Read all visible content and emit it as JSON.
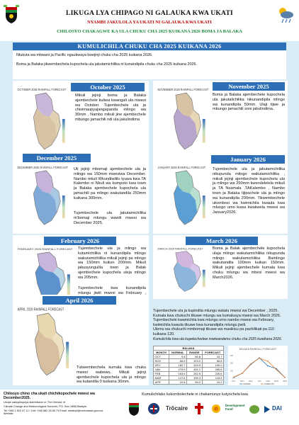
{
  "header": {
    "title": "LIKUGA LYA CHIPAGO NI GALAUKA KWA UKATI",
    "subtitle_red": "NYAMBI JAKULOLA YA UKATI NI GALAUKA KWA UKATI",
    "subtitle_green": "CHILOSYO CHAKAGWE KA ULA CHUKU CHA 2025 KUIKANA 2026 BOMA JA BALAKA"
  },
  "banner": "KUMULICHILA CHUKU CHA 2025 KUIKANA 2026",
  "intro": {
    "p1": "Ntukuta wa mbwani  ja Pacific ngaukwaya kwejinji chuku cha 2025 kuikana 2026.",
    "p2": "Boma ja Balaka jikwembechela kupochela ula jakutamichilika ni kunandipila chuku cha 2025 kuikana 2026."
  },
  "panels": {
    "oct": {
      "title": "October 2025",
      "map_title": "OCTOBER 2025 RAINFALL FORECAST",
      "text": "Mikuli jejinji boma ja Balaka ajembechele kuliwa kwangali ula mwesi wa October. Tujembechele ula ja chisimaupyajangapanda mlingo wa 30mm , Nambo mikuli jine ajembechele mbungo jamachili ndi ula jakulindima"
    },
    "nov": {
      "title": "November 2025",
      "map_title": "NOVEMBER 2025 RAINFALL FORECAST",
      "text": "Boma ja Balaka ajembechele kupochela ula jakutalichilika nikunandipila mlingo wa kunandipila 50mm. Ulaji tijwe ja mbungo jamachili soni jakulindima.."
    },
    "dec": {
      "title": "December 2025",
      "map_title": "DECEMBER 2025 RAINFALL FORECAST",
      "text1": "Uli jejinji mbomaji ajembechele ula ja mlingo wa 150mm mwesiwa December. Nambo mkuli Wkundiwililo tyuwa kwa TA Kalembo ni Nkuli wa kumpoto kwa town ja Balaka ajembechele kupochela ula jamachili pa mlingo wakutandila 250mm kuikana 300mm.",
      "text2": "Tujembechele ula jakutamichilika m'bomaji mlungu wawili mwesi wa December 2025."
    },
    "jan": {
      "title": "January 2026",
      "map_title": "JANUARY 2026 RAINFALL FORECAST",
      "text": "Tujembechele ula ja jakutamichilika nikupunda mlingo wakutamichilika , mikuli jejinji ajembechele kupochela ula ja mlingo wa 250mm kwendelelela mikuli ja TA Nsamala ,TAKalembo , Nambo town ja Balaka tijipochele ula ja mlingo wa kunandipila 200mm. Tikwembechele ukombosi wa kwimichila kwaula kwa mlungo umo kuwa kwakwela mwesi wa January2026."
    },
    "feb": {
      "title": "February 2026",
      "map_title": "FEBRUARY 2026 RAINFALL FORECAST",
      "text1": "Tujembechele ula ja mlingo wa kutamichilika ni kunandipila mlingo wakutamichilika mikuli jejinji pa mlingo wa 150mm kuiksn 200mm. Mikuli jakusyungulila town ja Balak ajembechele kupochela uleja mlingo wa 205mm.",
      "text2": "Tujembechele kwa kunandipila mlungu jiwili mwesi wa February , 2026."
    },
    "mar": {
      "title": "March 2026",
      "map_title": "MARCH 2026 RAINFALL FORECAST",
      "text": "Boma ja Balak ajembechele kupochela ulaja mlingo wakutamichilika nikupunda mlingo wakutamichilika Bamlingo wakutandila 100mm kuikan 150mm. Mikuli jejinji ajembechele kumala kwa chuku mlungu wa mbesi mwesi wa March2026."
    },
    "apr": {
      "title": "April 2026",
      "map_title": "APRIL 2026 RAINFALL FORECAST",
      "text": "Tukwembechela kumala kwa chuku mwesi wabewu. Mikuli jejinji ajembechele kupochela ula ja mlingo wa kutandila 0 kuikana 30mm."
    }
  },
  "summary": {
    "p1": "Tujembechele ula ja kupindila mlungu watatu mwesi wa December , 2025. Kumala kwa chukuchi tikuwe mlungu wa kumalusya mwesi wa March 2026.",
    "p2": "Tujembechele kwamichila kwa mlungu umo nambo mwesi wa February, kwimichila kwaula tikuwe kwa kunandipila mlungu jiwili.",
    "p3": "Ulemu wa chukuchi mmbomaji tikuwe wa masikisu pa pachilikati pa 110 kuikana 120.",
    "caption": "Kumulichila kwa ula kupelechedwe mwiwandamu chuku cha 2025 kuwikana 2026."
  },
  "table": {
    "title": "BALAKA",
    "headers": [
      "MONTH",
      "NORMAL",
      "RANGE",
      "FORECAST"
    ],
    "rows": [
      [
        "OCT",
        "9.8",
        "66.8",
        "15.7"
      ],
      [
        "NOV",
        "66.6",
        "123.2",
        "66.8"
      ],
      [
        "DEC",
        "182.7",
        "319.5",
        "190.0"
      ],
      [
        "JAN",
        "270.9",
        "432.1",
        "265.6"
      ],
      [
        "FEB",
        "163.6",
        "252.5",
        "225.6"
      ],
      [
        "MAR",
        "127.6",
        "199.3",
        "115.5"
      ],
      [
        "APR",
        "10.8",
        "59.2",
        "10.2"
      ]
    ]
  },
  "chart_data": {
    "type": "line",
    "title": "BALAKA RAINFALL FORECAST",
    "categories": [
      "OCT",
      "NOV",
      "DEC",
      "JAN",
      "FEB",
      "MAR",
      "APR"
    ],
    "series": [
      {
        "name": "NORMAL",
        "values": [
          9.8,
          66.6,
          182.7,
          270.9,
          163.6,
          127.6,
          10.8
        ]
      },
      {
        "name": "FORECAST",
        "values": [
          15.7,
          66.8,
          190.0,
          265.6,
          225.6,
          115.5,
          10.2
        ]
      }
    ],
    "ylim": [
      0,
      300
    ]
  },
  "footer": {
    "bold": "Chilosyo chino cha ukati chichikopochele mwesi wa December2025.",
    "small1": "Usupe nakuyikopoya alambikane ni: The Director of",
    "small2": "Climate Change and Meteorological Services, P.O. Box 1808,Blantyre.",
    "small3": "Tel +265 1 822 47 12 / Cell +265 882 26 65 79 Email: metdept@metmalawi.gov.mw   Website",
    "center": "Kumulichilako kukombolechele ni chakamunyo kutyochela kwa",
    "logo_trocaire": "Trōcaire",
    "logo_dai": "DAI",
    "logo_dev": "Development Fund"
  },
  "colors": {
    "blue": "#2d6fb6",
    "bg": "#d9ecf5",
    "red": "#c00000",
    "green": "#1a8a3a"
  }
}
